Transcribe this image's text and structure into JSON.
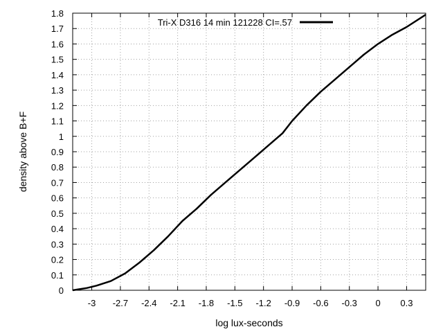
{
  "chart_data": {
    "type": "line",
    "title": "",
    "xlabel": "log lux-seconds",
    "ylabel": "density above B+F",
    "xlim": [
      -3.2,
      0.5
    ],
    "ylim": [
      0,
      1.8
    ],
    "xticks": [
      -3,
      -2.7,
      -2.4,
      -2.1,
      -1.8,
      -1.5,
      -1.2,
      -0.9,
      -0.6,
      -0.3,
      0,
      0.3
    ],
    "xtick_labels": [
      "-3",
      "-2.7",
      "-2.4",
      "-2.1",
      "-1.8",
      "-1.5",
      "-1.2",
      "-0.9",
      "-0.6",
      "-0.3",
      "0",
      "0.3"
    ],
    "yticks": [
      0,
      0.1,
      0.2,
      0.3,
      0.4,
      0.5,
      0.6,
      0.7,
      0.8,
      0.9,
      1,
      1.1,
      1.2,
      1.3,
      1.4,
      1.5,
      1.6,
      1.7,
      1.8
    ],
    "ytick_labels": [
      "0",
      "0.1",
      "0.2",
      "0.3",
      "0.4",
      "0.5",
      "0.6",
      "0.7",
      "0.8",
      "0.9",
      "1",
      "1.1",
      "1.2",
      "1.3",
      "1.4",
      "1.5",
      "1.6",
      "1.7",
      "1.8"
    ],
    "grid": true,
    "legend_position": "top",
    "series": [
      {
        "name": "Tri-X D316 14 min 121228 CI=.57",
        "color": "#000000",
        "x": [
          -3.2,
          -3.15,
          -3.05,
          -2.95,
          -2.8,
          -2.65,
          -2.5,
          -2.35,
          -2.2,
          -2.05,
          -1.9,
          -1.75,
          -1.6,
          -1.45,
          -1.3,
          -1.15,
          -1.0,
          -0.9,
          -0.75,
          -0.6,
          -0.45,
          -0.3,
          -0.15,
          0.0,
          0.15,
          0.3,
          0.5
        ],
        "y": [
          0.0,
          0.005,
          0.015,
          0.03,
          0.06,
          0.11,
          0.18,
          0.26,
          0.35,
          0.45,
          0.53,
          0.62,
          0.7,
          0.78,
          0.86,
          0.94,
          1.02,
          1.1,
          1.2,
          1.29,
          1.37,
          1.45,
          1.53,
          1.6,
          1.66,
          1.71,
          1.79
        ]
      }
    ]
  }
}
